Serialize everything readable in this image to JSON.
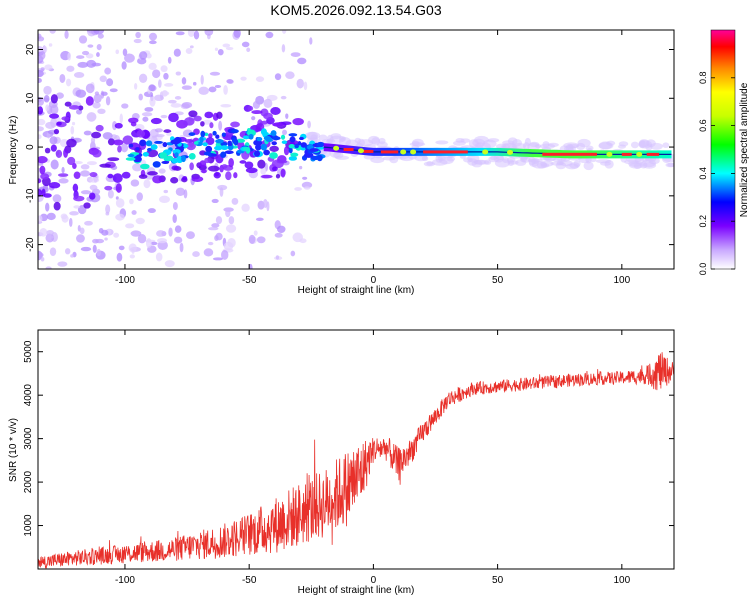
{
  "title": "KOM5.2026.092.13.54.G03",
  "chart_data": [
    {
      "type": "heatmap",
      "xlabel": "Height of straight line (km)",
      "ylabel": "Frequency (Hz)",
      "xlim": [
        -135,
        121
      ],
      "ylim": [
        -25,
        24
      ],
      "xticks": [
        -100,
        -50,
        0,
        50,
        100
      ],
      "xtick_labels": [
        "-100",
        "-50",
        "0",
        "50",
        "100"
      ],
      "yticks": [
        20,
        10,
        0,
        -10,
        -20
      ],
      "ytick_labels": [
        "20",
        "10",
        "0",
        "-10",
        "-20"
      ],
      "colorbar": {
        "label": "Normalized spectral amplitude",
        "range": [
          0,
          1
        ],
        "ticks": [
          0.0,
          0.2,
          0.4,
          0.6,
          0.8
        ],
        "tick_labels": [
          "0.0",
          "0.2",
          "0.4",
          "0.6",
          "0.8"
        ]
      },
      "ridge": {
        "description": "dominant spectral line",
        "points": [
          [
            -90,
            -1.5
          ],
          [
            -70,
            0.5
          ],
          [
            -50,
            1
          ],
          [
            -30,
            0
          ],
          [
            -20,
            0
          ],
          [
            0,
            -1
          ],
          [
            20,
            -1
          ],
          [
            50,
            -1
          ],
          [
            80,
            -1.5
          ],
          [
            100,
            -1.5
          ],
          [
            120,
            -1.5
          ]
        ]
      }
    },
    {
      "type": "line",
      "xlabel": "Height of straight line (km)",
      "ylabel": "SNR (10 * v/v)",
      "xlim": [
        -135,
        121
      ],
      "ylim": [
        0,
        5500
      ],
      "xticks": [
        -100,
        -50,
        0,
        50,
        100
      ],
      "xtick_labels": [
        "-100",
        "-50",
        "0",
        "50",
        "100"
      ],
      "yticks": [
        1000,
        2000,
        3000,
        4000,
        5000
      ],
      "ytick_labels": [
        "1000",
        "2000",
        "3000",
        "4000",
        "5000"
      ],
      "series": [
        {
          "name": "SNR",
          "color": "#e8302a",
          "x": [
            -135,
            -120,
            -100,
            -80,
            -60,
            -50,
            -40,
            -30,
            -20,
            -10,
            -5,
            0,
            5,
            10,
            15,
            20,
            25,
            30,
            40,
            50,
            60,
            70,
            80,
            90,
            100,
            110,
            115,
            121
          ],
          "mean": [
            150,
            250,
            350,
            450,
            650,
            800,
            1000,
            1250,
            1500,
            1900,
            2200,
            2750,
            2800,
            2400,
            2700,
            3150,
            3500,
            3900,
            4150,
            4200,
            4250,
            4300,
            4350,
            4380,
            4400,
            4450,
            4550,
            4550
          ],
          "spread": [
            150,
            180,
            220,
            280,
            400,
            500,
            650,
            750,
            800,
            900,
            800,
            300,
            300,
            400,
            300,
            250,
            200,
            200,
            150,
            150,
            150,
            150,
            150,
            150,
            150,
            200,
            500,
            200
          ]
        }
      ]
    }
  ]
}
